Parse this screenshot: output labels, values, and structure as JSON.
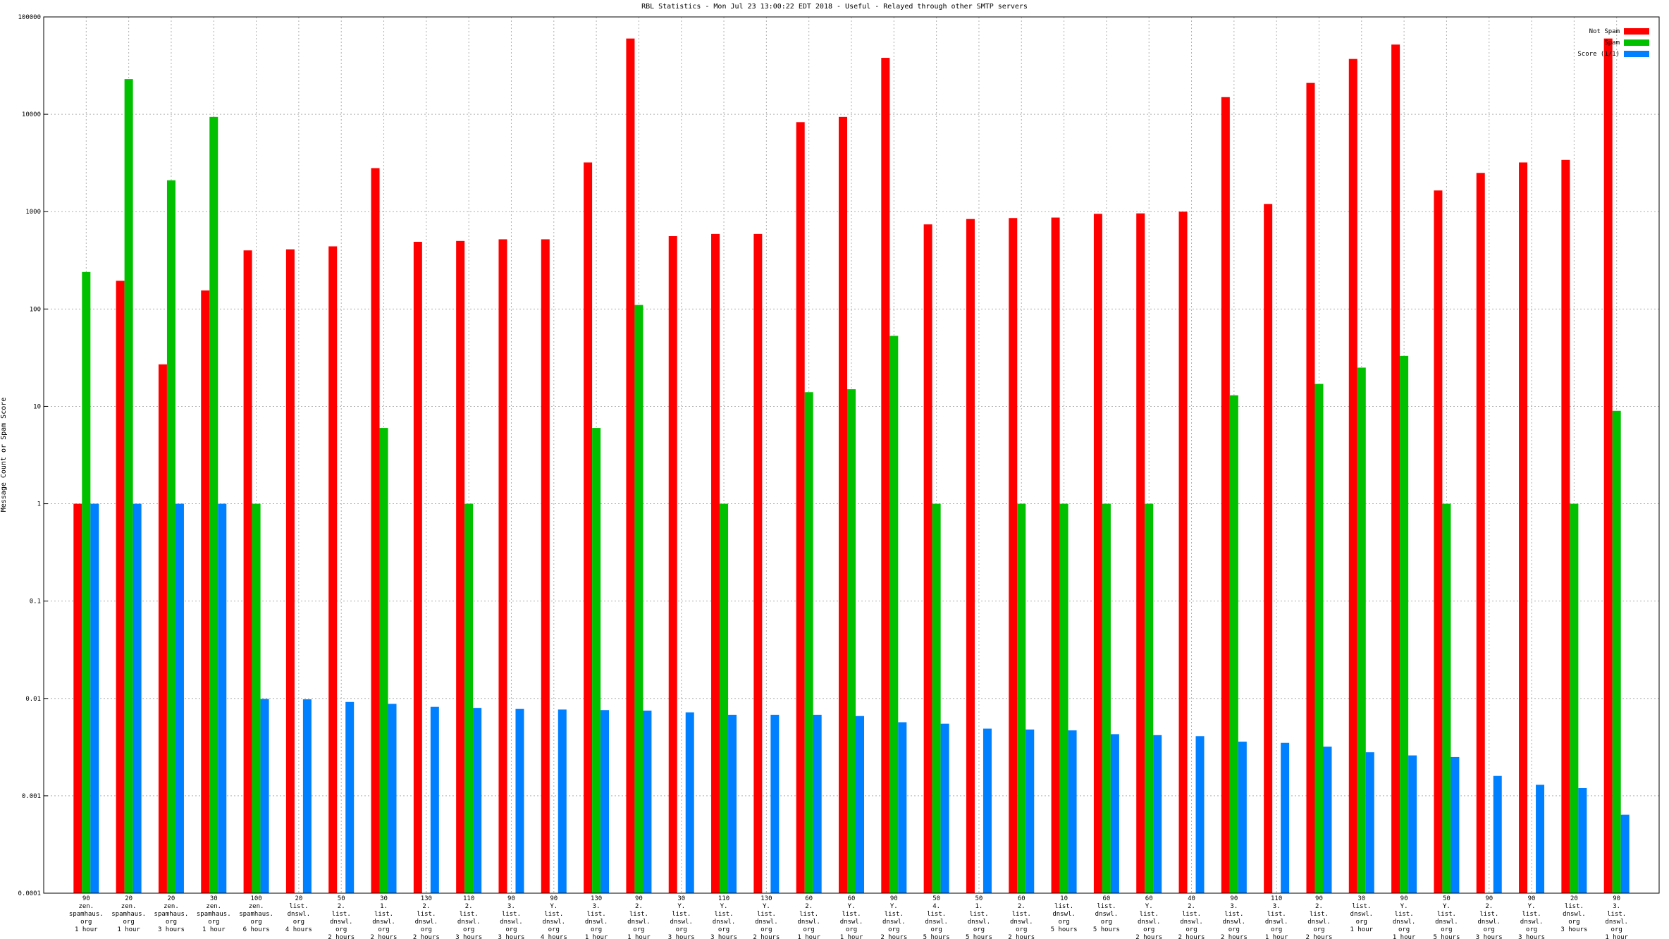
{
  "chart_data": {
    "type": "bar",
    "title": "RBL Statistics - Mon Jul 23 13:00:22 EDT 2018 - Useful - Relayed through other SMTP servers",
    "y_label": "Message Count or Spam Score",
    "log_y": true,
    "grid": true,
    "legend": "top-right",
    "ylim": [
      0.0001,
      100000
    ],
    "yticks": [
      0.0001,
      0.001,
      0.01,
      0.1,
      1,
      10,
      100,
      1000,
      10000,
      100000
    ],
    "categories": [
      "90\nzen.\nspamhaus.\norg\n1 hour",
      "20\nzen.\nspamhaus.\norg\n1 hour",
      "20\nzen.\nspamhaus.\norg\n3 hours",
      "30\nzen.\nspamhaus.\norg\n1 hour",
      "100\nzen.\nspamhaus.\norg\n6 hours",
      "20\nlist.\ndnswl.\norg\n4 hours",
      "50\n2.\nlist.\ndnswl.\norg\n2 hours",
      "30\n1.\nlist.\ndnswl.\norg\n2 hours",
      "130\n2.\nlist.\ndnswl.\norg\n2 hours",
      "110\n2.\nlist.\ndnswl.\norg\n3 hours",
      "90\n3.\nlist.\ndnswl.\norg\n3 hours",
      "90\nY.\nlist.\ndnswl.\norg\n4 hours",
      "130\n3.\nlist.\ndnswl.\norg\n1 hour",
      "90\n2.\nlist.\ndnswl.\norg\n1 hour",
      "30\nY.\nlist.\ndnswl.\norg\n3 hours",
      "110\nY.\nlist.\ndnswl.\norg\n3 hours",
      "130\nY.\nlist.\ndnswl.\norg\n2 hours",
      "60\n2.\nlist.\ndnswl.\norg\n1 hour",
      "60\nY.\nlist.\ndnswl.\norg\n1 hour",
      "90\nY.\nlist.\ndnswl.\norg\n2 hours",
      "50\n4.\nlist.\ndnswl.\norg\n5 hours",
      "50\n1.\nlist.\ndnswl.\norg\n5 hours",
      "60\n2.\nlist.\ndnswl.\norg\n2 hours",
      "10\nlist.\ndnswl.\norg\n5 hours",
      "60\nlist.\ndnswl.\norg\n5 hours",
      "60\nY.\nlist.\ndnswl.\norg\n2 hours",
      "40\n2.\nlist.\ndnswl.\norg\n2 hours",
      "90\n3.\nlist.\ndnswl.\norg\n2 hours",
      "110\n3.\nlist.\ndnswl.\norg\n1 hour",
      "90\n2.\nlist.\ndnswl.\norg\n2 hours",
      "30\nlist.\ndnswl.\norg\n1 hour",
      "90\nY.\nlist.\ndnswl.\norg\n1 hour",
      "50\nY.\nlist.\ndnswl.\norg\n5 hours",
      "90\n2.\nlist.\ndnswl.\norg\n3 hours",
      "90\nY.\nlist.\ndnswl.\norg\n3 hours",
      "20\nlist.\ndnswl.\norg\n3 hours",
      "90\n3.\nlist.\ndnswl.\norg\n1 hour"
    ],
    "series": [
      {
        "name": "Not Spam",
        "color": "#ff0000",
        "values": [
          1,
          195,
          27,
          155,
          400,
          410,
          440,
          2800,
          490,
          500,
          520,
          520,
          3200,
          60000,
          560,
          590,
          590,
          8300,
          9400,
          38000,
          740,
          840,
          860,
          870,
          950,
          960,
          1000,
          15000,
          1200,
          21000,
          37000,
          52000,
          1650,
          2500,
          3200,
          3400,
          60000
        ]
      },
      {
        "name": "Spam",
        "color": "#00c000",
        "values": [
          240,
          23000,
          2100,
          9400,
          1,
          null,
          null,
          6,
          null,
          1,
          null,
          null,
          6,
          110,
          null,
          1,
          null,
          14,
          15,
          53,
          1,
          null,
          1,
          1,
          1,
          1,
          null,
          13,
          null,
          17,
          25,
          33,
          1,
          null,
          null,
          1,
          9
        ]
      },
      {
        "name": "Score (1/1)",
        "color": "#0080ff",
        "values": [
          1,
          1,
          1,
          1,
          0.0099,
          0.0098,
          0.0092,
          0.0088,
          0.0082,
          0.008,
          0.0078,
          0.0077,
          0.0076,
          0.0075,
          0.0072,
          0.0068,
          0.0068,
          0.0068,
          0.0066,
          0.0057,
          0.0055,
          0.0049,
          0.0048,
          0.0047,
          0.0043,
          0.0042,
          0.0041,
          0.0036,
          0.0035,
          0.0032,
          0.0028,
          0.0026,
          0.0025,
          0.0016,
          0.0013,
          0.0012,
          0.00064
        ]
      }
    ]
  }
}
